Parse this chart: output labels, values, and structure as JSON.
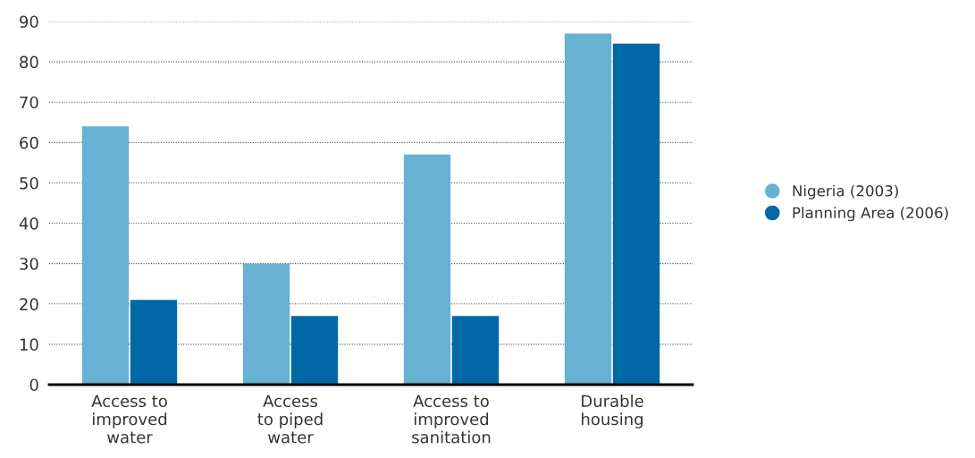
{
  "chart_data": {
    "type": "bar",
    "categories": [
      "Access to\nimproved\nwater",
      "Access\nto piped\nwater",
      "Access to\nimproved\nsanitation",
      "Durable\nhousing"
    ],
    "series": [
      {
        "name": "Nigeria (2003)",
        "color": "#67b1d3",
        "values": [
          64,
          30,
          57,
          87
        ]
      },
      {
        "name": "Planning Area (2006)",
        "color": "#0068a5",
        "values": [
          21,
          17,
          17,
          84.5
        ]
      }
    ],
    "ylim": [
      0,
      90
    ],
    "yticks": [
      0,
      10,
      20,
      30,
      40,
      50,
      60,
      70,
      80,
      90
    ],
    "grid": "y",
    "legend": "right",
    "marker": "circle"
  }
}
